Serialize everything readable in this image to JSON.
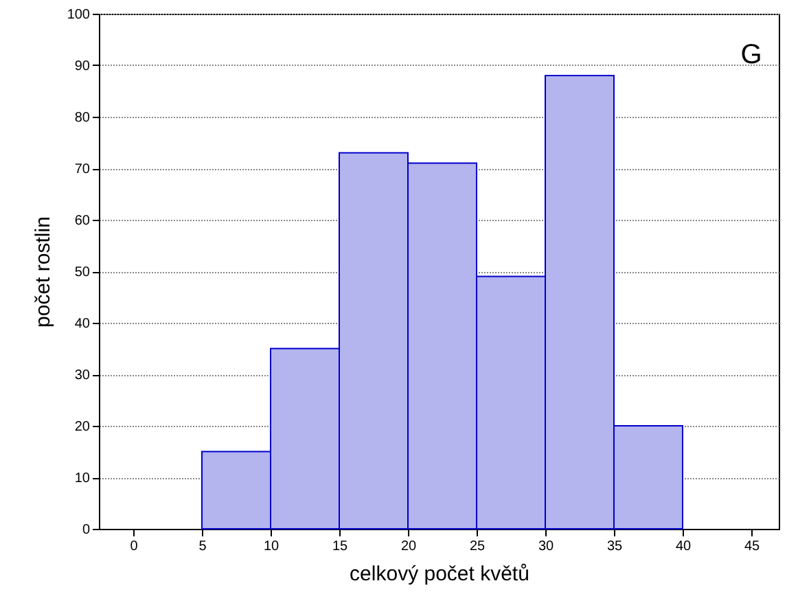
{
  "chart_data": {
    "type": "histogram",
    "xlabel": "celkový počet květů",
    "ylabel": "počet rostlin",
    "annotations": [
      "G"
    ],
    "bins": [
      5,
      10,
      15,
      20,
      25,
      30,
      35,
      40
    ],
    "values": [
      15,
      35,
      73,
      71,
      49,
      88,
      20
    ],
    "color": "#b4b4ee",
    "xlim": [
      -2.5,
      47
    ],
    "xticks": [
      0,
      5,
      10,
      15,
      20,
      25,
      30,
      35,
      40,
      45
    ],
    "ylim": [
      0,
      100
    ],
    "yticks": [
      0,
      10,
      20,
      30,
      40,
      50,
      60,
      70,
      80,
      90,
      100
    ],
    "grid": "y"
  }
}
